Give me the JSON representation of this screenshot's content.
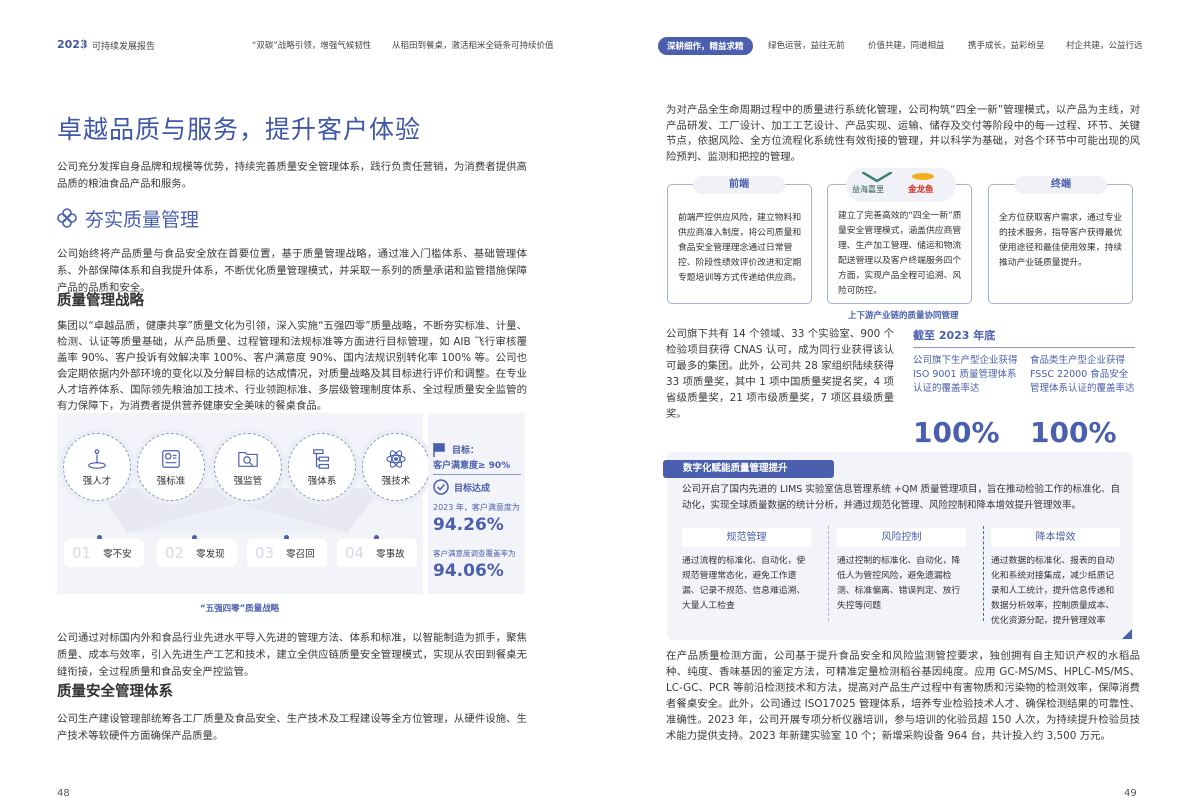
{
  "left": {
    "header": {
      "year": "2023",
      "report": "可持续发展报告",
      "nav": [
        "“双碳”战略引领，增强气候韧性",
        "从稻田到餐桌，激活稻米全链条可持续价值"
      ]
    },
    "title": "卓越品质与服务，提升客户体验",
    "intro": "公司充分发挥自身品牌和规模等优势，持续完善质量安全管理体系，践行负责任营销，为消费者提供高品质的粮油食品产品和服务。",
    "section": "夯实质量管理",
    "section_para": "公司始终将产品质量与食品安全放在首要位置，基于质量管理战略，通过准入门槛体系、基础管理体系、外部保障体系和自我提升体系，不断优化质量管理模式，并采取一系列的质量承诺和监管措施保障产品的品质和安全。",
    "strategy_heading": "质量管理战略",
    "strategy_para": "集团以“卓越品质，健康共享”质量文化为引领，深入实施“五强四零”质量战略，不断夯实标准、计量、检测、认证等质量基础，从产品质量、过程管理和法规标准等方面进行目标管理，如 AIB 飞行审核覆盖率 90%、客户投诉有效解决率 100%、客户满意度 90%、国内法规识别转化率 100% 等。公司也会定期依据内外部环境的变化以及分解目标的达成情况，对质量战略及其目标进行评价和调整。在专业人才培养体系、国际领先粮油加工技术、行业领跑标准、多层级管理制度体系、全过程质量安全监管的有力保障下，为消费者提供营养健康安全美味的餐桌食品。",
    "diagram": {
      "strengths": [
        {
          "label": "强人才",
          "icon": "person-icon"
        },
        {
          "label": "强标准",
          "icon": "standard-doc-icon"
        },
        {
          "label": "强监管",
          "icon": "folder-search-icon"
        },
        {
          "label": "强体系",
          "icon": "hierarchy-icon"
        },
        {
          "label": "强技术",
          "icon": "atom-icon"
        }
      ],
      "zeros": [
        {
          "num": "01",
          "label": "零不安"
        },
        {
          "num": "02",
          "label": "零发现"
        },
        {
          "num": "03",
          "label": "零召回"
        },
        {
          "num": "04",
          "label": "零事故"
        }
      ],
      "target_label": "目标：",
      "target_value": "客户满意度≥ 90%",
      "achieved": "目标达成",
      "stat1_label": "2023 年，客户满意度为",
      "stat1_value": "94.26%",
      "stat2_label": "客户满意度调查覆盖率为",
      "stat2_value": "94.06%",
      "caption": "“五强四零”质量战略"
    },
    "para_after": "公司通过对标国内外和食品行业先进水平导入先进的管理方法、体系和标准，以智能制造为抓手，聚焦质量、成本与效率，引入先进生产工艺和技术，建立全供应链质量安全管理模式，实现从农田到餐桌无缝衔接，全过程质量和食品安全严控监管。",
    "system_heading": "质量安全管理体系",
    "system_para": "公司生产建设管理部统筹各工厂质量及食品安全、生产技术及工程建设等全方位管理，从硬件设施、生产技术等软硬件方面确保产品质量。",
    "page": "48"
  },
  "right": {
    "nav": {
      "active": "深耕细作，精益求精",
      "items": [
        "绿色运营，益往无前",
        "价值共建，同道相益",
        "携手成长，益彩纷呈",
        "村企共建，公益行远"
      ]
    },
    "intro": "为对产品全生命周期过程中的质量进行系统化管理，公司构筑“四全一新”管理模式，以产品为主线，对产品研发、工厂设计、加工工艺设计、产品实现、运输、储存及交付等阶段中的每一过程、环节、关键节点，依据风险、全方位流程化系统性有效衔接的管理，并以科学为基础，对各个环节中可能出现的风险预判、监测和把控的管理。",
    "cards": [
      {
        "tab": "前端",
        "text": "前端严控供应风险，建立物料和供应商准入制度，将公司质量和食品安全管理理念通过日常管控、阶段性绩效评价改进和定期专题培训等方式传递给供应商。"
      },
      {
        "logos": [
          "益海嘉里",
          "金龙鱼"
        ],
        "text": "建立了完善高效的“四全一新”质量安全管理模式，涵盖供应商管理、生产加工管理、储运和物流配送管理以及客户终端服务四个方面，实现产品全程可追溯、风险可防控。"
      },
      {
        "tab": "终端",
        "text": "全方位获取客户需求，通过专业的技术服务，指导客户获得最优使用途径和最佳使用效果，持续推动产业链质量提升。"
      }
    ],
    "cards_caption": "上下游产业链的质量协同管理",
    "lab_para": "公司旗下共有 14 个领域、33 个实验室、900 个检验项目获得 CNAS 认可，成为同行业获得该认可最多的集团。此外，公司共 28 家组织陆续获得 33 项质量奖，其中 1 项中国质量奖提名奖，4 项省级质量奖，21 项市级质量奖，7 项区县级质量奖。",
    "stats": {
      "heading": "截至 2023 年底",
      "items": [
        {
          "label": "公司旗下生产型企业获得 ISO 9001 质量管理体系认证的覆盖率达",
          "value": "100%"
        },
        {
          "label": "食品类生产型企业获得 FSSC 22000 食品安全管理体系认证的覆盖率达",
          "value": "100%"
        }
      ]
    },
    "digital": {
      "title": "数字化赋能质量管理提升",
      "para": "公司开启了国内先进的 LIMS 实验室信息管理系统 +QM 质量管理项目，旨在推动检验工作的标准化、自动化，实现全球质量数据的统计分析，并通过规范化管理、风险控制和降本增效提升管理效率。",
      "cols": [
        {
          "title": "规范管理",
          "text": "通过流程的标准化、自动化，使规范管理常态化，避免工作遗漏、记录不规范、信息难追溯、大量人工检查"
        },
        {
          "title": "风险控制",
          "text": "通过控制的标准化、自动化，降低人为管控风险，避免遗漏检测、标准偏离、错误判定、放行失控等问题"
        },
        {
          "title": "降本增效",
          "text": "通过数据的标准化、报表的自动化和系统对接集成，减少纸质记录和人工统计，提升信息传递和数据分析效率，控制质量成本、优化资源分配，提升管理效率"
        }
      ]
    },
    "testing_para": "在产品质量检测方面，公司基于提升食品安全和风险监测管控要求，独创拥有自主知识产权的水稻品种、纯度、香味基因的鉴定方法，可精准定量检测稻谷基因纯度。应用 GC-MS/MS、HPLC-MS/MS、LC-GC、PCR 等前沿检测技术和方法，提高对产品生产过程中有害物质和污染物的检测效率，保障消费者餐桌安全。此外，公司通过 ISO17025 管理体系，培养专业检验技术人才、确保检测结果的可靠性、准确性。2023 年，公司开展专项分析仪器培训，参与培训的化验员超 150 人次，为持续提升检验员技术能力提供支持。2023 年新建实验室 10 个；新增采购设备 964 台，共计投入约 3,500 万元。",
    "page": "49"
  },
  "colors": {
    "accent": "#4a5fae",
    "panel": "#f3f4f9"
  }
}
